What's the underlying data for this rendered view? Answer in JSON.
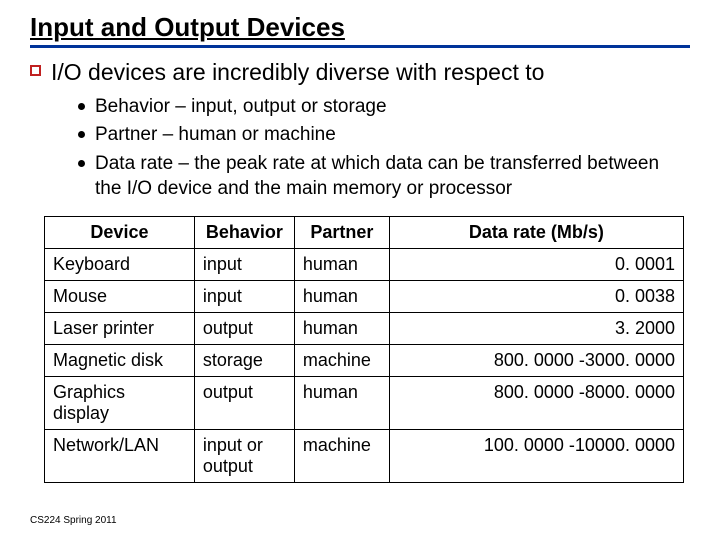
{
  "title": "Input and Output Devices",
  "main_bullet": "I/O devices are incredibly diverse with respect to",
  "sub_bullets": [
    "Behavior – input, output or storage",
    "Partner – human or machine",
    "Data rate – the peak rate at which data can be transferred between the I/O device and the main memory or processor"
  ],
  "table": {
    "headers": [
      "Device",
      "Behavior",
      "Partner",
      "Data rate (Mb/s)"
    ],
    "rows": [
      [
        "Keyboard",
        "input",
        "human",
        "0. 0001"
      ],
      [
        "Mouse",
        "input",
        "human",
        "0. 0038"
      ],
      [
        "Laser printer",
        "output",
        "human",
        "3. 2000"
      ],
      [
        "Magnetic disk",
        "storage",
        "machine",
        "800. 0000 -3000. 0000"
      ],
      [
        "Graphics display",
        "output",
        "human",
        "800. 0000 -8000. 0000"
      ],
      [
        "Network/LAN",
        "input or output",
        "machine",
        "100. 0000 -10000. 0000"
      ]
    ]
  },
  "footer": "CS224 Spring 2011",
  "colors": {
    "rule": "#003399",
    "square_border": "#c02020",
    "text": "#000000",
    "background": "#ffffff"
  }
}
